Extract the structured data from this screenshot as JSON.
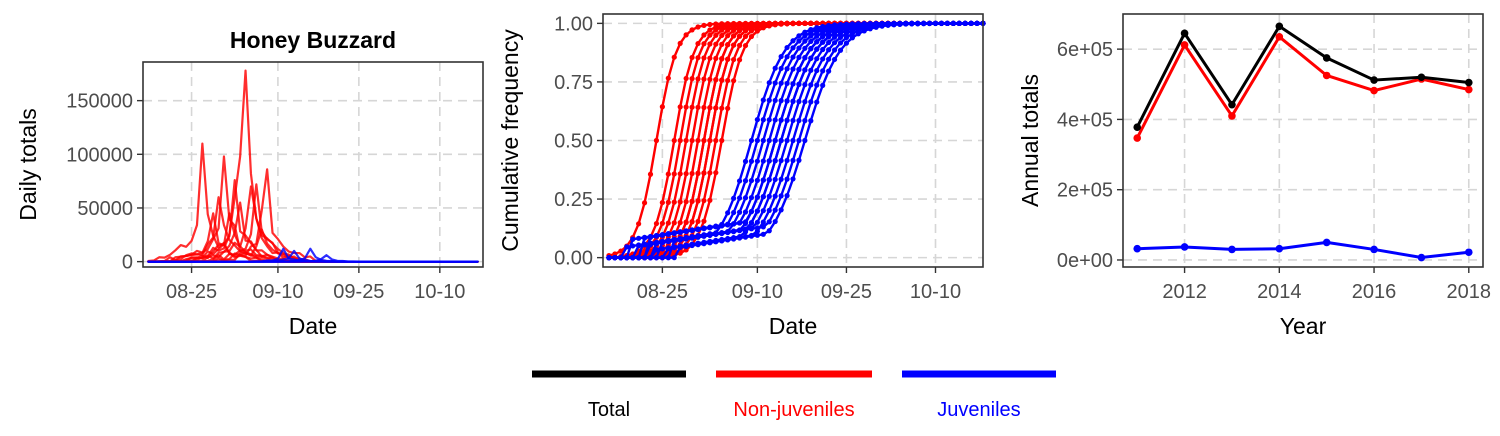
{
  "chart_data": [
    {
      "type": "line",
      "title": "Honey Buzzard",
      "xlabel": "Date",
      "ylabel": "Daily totals",
      "x_axis": "date",
      "xlim": [
        "08-16",
        "10-18"
      ],
      "ylim": [
        -5000,
        186000
      ],
      "xticks": [
        "08-25",
        "09-10",
        "09-25",
        "10-10"
      ],
      "yticks": [
        0,
        50000,
        100000,
        150000
      ],
      "ytick_labels": [
        "0",
        "50000",
        "100000",
        "150000"
      ],
      "grid": true,
      "series": [
        {
          "name": "Non-juveniles",
          "color": "#FF0000",
          "peaks": [
            [
              "08-27",
              110000
            ],
            [
              "08-29",
              45000
            ],
            [
              "08-31",
              98000
            ],
            [
              "09-02",
              76000
            ],
            [
              "09-04",
              178000
            ],
            [
              "09-05",
              70000
            ],
            [
              "09-06",
              72000
            ],
            [
              "09-08",
              86000
            ],
            [
              "08-30",
              60000
            ],
            [
              "09-01",
              45000
            ],
            [
              "09-03",
              55000
            ],
            [
              "09-07",
              30000
            ]
          ]
        },
        {
          "name": "Juveniles",
          "color": "#0000FF",
          "peaks": [
            [
              "09-11",
              12000
            ],
            [
              "09-13",
              10000
            ],
            [
              "09-16",
              12000
            ],
            [
              "09-19",
              6000
            ]
          ]
        }
      ]
    },
    {
      "type": "line",
      "title": "",
      "xlabel": "Date",
      "ylabel": "Cumulative frequency",
      "x_axis": "date",
      "xlim": [
        "08-15",
        "10-18"
      ],
      "ylim": [
        -0.04,
        1.04
      ],
      "xticks": [
        "08-25",
        "09-10",
        "09-25",
        "10-10"
      ],
      "yticks": [
        0.0,
        0.25,
        0.5,
        0.75,
        1.0
      ],
      "ytick_labels": [
        "0.00",
        "0.25",
        "0.50",
        "0.75",
        "1.00"
      ],
      "grid": true,
      "series": [
        {
          "name": "Non-juveniles",
          "color": "#FF0000",
          "mid_dates": [
            "08-24",
            "08-27",
            "08-28",
            "08-29",
            "08-30",
            "08-31",
            "09-01",
            "09-01",
            "09-02",
            "09-02",
            "09-03",
            "09-04"
          ]
        },
        {
          "name": "Juveniles",
          "color": "#0000FF",
          "mid_dates": [
            "09-09",
            "09-10",
            "09-11",
            "09-12",
            "09-13",
            "09-13",
            "09-14",
            "09-14",
            "09-15",
            "09-16",
            "09-17",
            "09-18"
          ]
        }
      ]
    },
    {
      "type": "line",
      "title": "",
      "xlabel": "Year",
      "ylabel": "Annual totals",
      "xlim": [
        2010.7,
        2018.3
      ],
      "ylim": [
        -20000,
        700000
      ],
      "xticks": [
        2012,
        2014,
        2016,
        2018
      ],
      "yticks": [
        0,
        200000,
        400000,
        600000
      ],
      "ytick_labels": [
        "0e+00",
        "2e+05",
        "4e+05",
        "6e+05"
      ],
      "grid": true,
      "x": [
        2011,
        2012,
        2013,
        2014,
        2015,
        2016,
        2017,
        2018
      ],
      "series": [
        {
          "name": "Total",
          "color": "#000000",
          "values": [
            378000,
            645000,
            442000,
            665000,
            575000,
            512000,
            520000,
            505000
          ]
        },
        {
          "name": "Non-juveniles",
          "color": "#FF0000",
          "values": [
            347000,
            612000,
            410000,
            635000,
            525000,
            482000,
            515000,
            485000
          ]
        },
        {
          "name": "Juveniles",
          "color": "#0000FF",
          "values": [
            32000,
            37000,
            30000,
            32000,
            50000,
            30000,
            7000,
            22000
          ]
        }
      ]
    }
  ],
  "legend": {
    "placement": "bottom",
    "items": [
      {
        "label": "Total",
        "color": "#000000"
      },
      {
        "label": "Non-juveniles",
        "color": "#FF0000"
      },
      {
        "label": "Juveniles",
        "color": "#0000FF"
      }
    ]
  }
}
